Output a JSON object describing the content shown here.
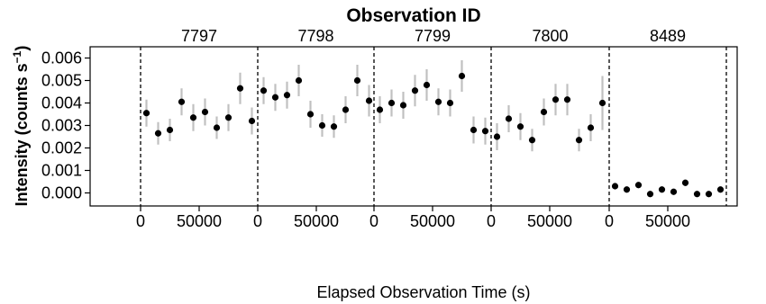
{
  "chart_data": {
    "type": "scatter",
    "title": "Observation ID",
    "xlabel": "Elapsed Observation Time (s)",
    "ylabel_prefix": "Intensity (counts s",
    "ylabel_sup": "−1",
    "ylabel_suffix": ")",
    "ylim": [
      -0.0006,
      0.0064
    ],
    "y_ticks": [
      "0.000",
      "0.001",
      "0.002",
      "0.003",
      "0.004",
      "0.005",
      "0.006"
    ],
    "y_tick_values": [
      0,
      0.001,
      0.002,
      0.003,
      0.004,
      0.005,
      0.006
    ],
    "x_tick_labels": [
      "0",
      "50000"
    ],
    "x_tick_values": [
      0,
      50000
    ],
    "grid": false,
    "error_bar_color": "#c0c0c0",
    "marker_color": "#000000",
    "panels": [
      {
        "observation_id": "7797",
        "x": [
          5000,
          15000,
          25000,
          35000,
          45000,
          55000,
          65000,
          75000,
          85000,
          95000
        ],
        "y": [
          0.00355,
          0.00265,
          0.0028,
          0.00405,
          0.00335,
          0.0036,
          0.0029,
          0.00335,
          0.00465,
          0.0032
        ],
        "err": [
          0.0006,
          0.0005,
          0.0005,
          0.0006,
          0.0006,
          0.0006,
          0.0005,
          0.0006,
          0.0007,
          0.0006
        ]
      },
      {
        "observation_id": "7798",
        "x": [
          5000,
          15000,
          25000,
          35000,
          45000,
          55000,
          65000,
          75000,
          85000,
          95000
        ],
        "y": [
          0.00455,
          0.00425,
          0.00435,
          0.005,
          0.0035,
          0.003,
          0.00295,
          0.0037,
          0.005,
          0.0041
        ],
        "err": [
          0.0006,
          0.0006,
          0.0006,
          0.0007,
          0.0006,
          0.0005,
          0.0005,
          0.0006,
          0.0007,
          0.0007
        ]
      },
      {
        "observation_id": "7799",
        "x": [
          5000,
          15000,
          25000,
          35000,
          45000,
          55000,
          65000,
          75000,
          85000,
          95000
        ],
        "y": [
          0.0037,
          0.004,
          0.0039,
          0.00455,
          0.0048,
          0.00405,
          0.004,
          0.0052,
          0.0028,
          0.00275
        ],
        "err": [
          0.0006,
          0.0006,
          0.0006,
          0.0007,
          0.0007,
          0.0006,
          0.0006,
          0.0007,
          0.0006,
          0.0006
        ]
      },
      {
        "observation_id": "7800",
        "x": [
          5000,
          15000,
          25000,
          35000,
          45000,
          55000,
          65000,
          75000,
          85000,
          95000
        ],
        "y": [
          0.0025,
          0.0033,
          0.00295,
          0.00235,
          0.0036,
          0.00415,
          0.00415,
          0.00235,
          0.0029,
          0.004
        ],
        "err": [
          0.0006,
          0.0006,
          0.0006,
          0.0005,
          0.0006,
          0.0007,
          0.0007,
          0.0005,
          0.0006,
          0.0012
        ]
      },
      {
        "observation_id": "8489",
        "x": [
          5000,
          15000,
          25000,
          35000,
          45000,
          55000,
          65000,
          75000,
          85000,
          95000
        ],
        "y": [
          0.0003,
          0.00015,
          0.00035,
          -5e-05,
          0.00015,
          5e-05,
          0.00045,
          -5e-05,
          -5e-05,
          0.00015
        ],
        "err": [
          0.00012,
          0.00012,
          0.00012,
          0.0001,
          0.00012,
          0.0001,
          0.00015,
          0.0001,
          0.0001,
          0.00012
        ]
      }
    ]
  }
}
